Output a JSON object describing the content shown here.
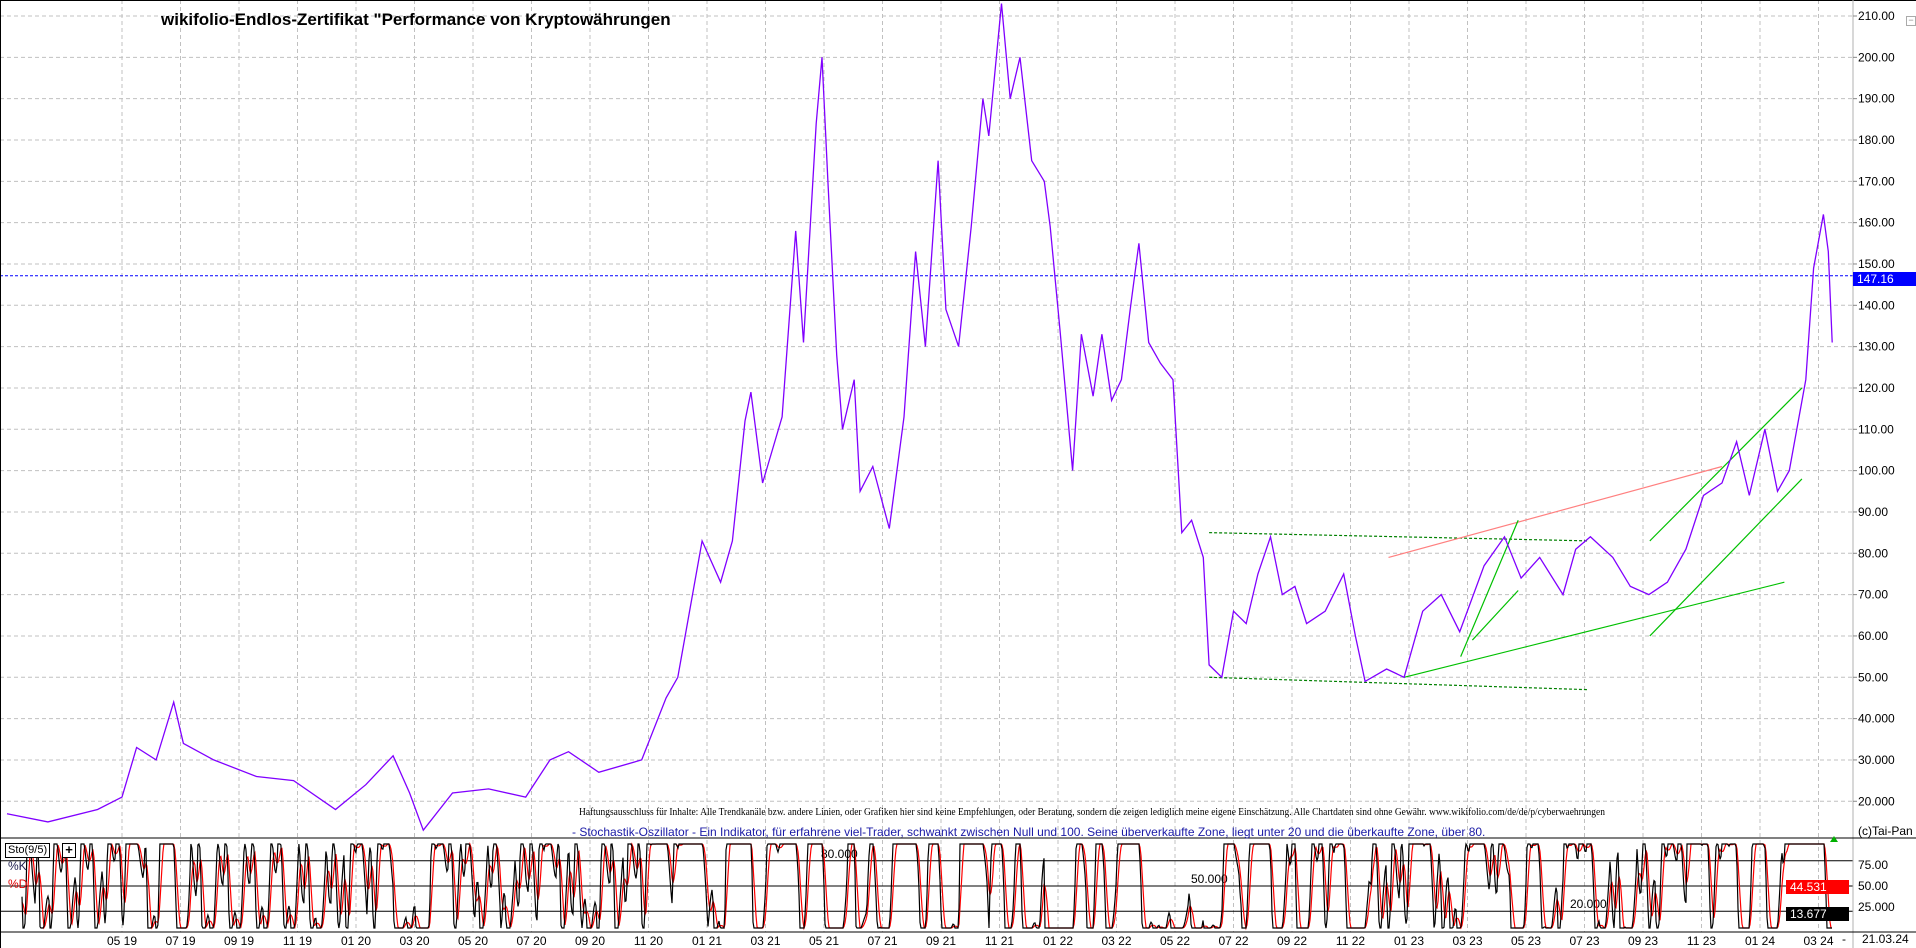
{
  "title": "wikifolio-Endlos-Zertifikat \"Performance von Kryptowährungen",
  "disclaimer": "Haftungsausschluss für Inhalte: Alle Trendkanäle bzw. andere Linien, oder Grafiken hier sind keine Empfehlungen, oder Beratung, sondern die zeigen lediglich meine eigene Einschätzung. Alle Chartdaten sind ohne Gewähr.  www.wikifolio.com/de/de/p/cyberwaehrungen",
  "indicator_description": "- Stochastik-Oszillator - Ein Indikator, für erfahrene viel-Trader, schwankt zwischen Null und 100. Seine überverkaufte Zone, liegt unter 20 und die überkaufte Zone, über 80.",
  "copyright": "(c)Tai-Pan",
  "end_date_label": "21.03.24",
  "end_dash": "-",
  "colors": {
    "price": "#8000ff",
    "last_price": "#0000ff",
    "trend_green": "#00c000",
    "trend_dashed": "#008000",
    "trend_red": "#ff8080",
    "stoch_k": "#000000",
    "stoch_d": "#ff0000",
    "grid": "#c0c0c0"
  },
  "icons": {
    "collapse": "minus-icon",
    "add_indicator": "plus-icon",
    "marker": "green-triangle-icon"
  },
  "chart_data": [
    {
      "type": "line",
      "title": "wikifolio-Endlos-Zertifikat \"Performance von Kryptowährungen",
      "ylim": [
        10,
        215
      ],
      "y_ticks": [
        "210.00",
        "200.00",
        "190.00",
        "180.00",
        "170.00",
        "160.00",
        "150.00",
        "140.00",
        "130.00",
        "120.00",
        "110.00",
        "100.00",
        "90.00",
        "80.00",
        "70.00",
        "60.00",
        "50.00",
        "40.000",
        "30.000",
        "20.000"
      ],
      "y_tick_values": [
        210,
        200,
        190,
        180,
        170,
        160,
        150,
        140,
        130,
        120,
        110,
        100,
        90,
        80,
        70,
        60,
        50,
        40,
        30,
        20
      ],
      "x_ticks": [
        "05 19",
        "07 19",
        "09 19",
        "11 19",
        "01 20",
        "03 20",
        "05 20",
        "07 20",
        "09 20",
        "11 20",
        "01 21",
        "03 21",
        "05 21",
        "07 21",
        "09 21",
        "11 21",
        "01 22",
        "03 22",
        "05 22",
        "07 22",
        "09 22",
        "11 22",
        "01 23",
        "03 23",
        "05 23",
        "07 23",
        "09 23",
        "11 23",
        "01 24",
        "03 24"
      ],
      "grid": true,
      "last_value": 147.16,
      "last_value_label": "147.16",
      "series": [
        {
          "points": [
            [
              "2019-01-03",
              17
            ],
            [
              "2019-02-15",
              15
            ],
            [
              "2019-04-06",
              18
            ],
            [
              "2019-05-01",
              21
            ],
            [
              "2019-05-16",
              33
            ],
            [
              "2019-06-06",
              30
            ],
            [
              "2019-06-24",
              44
            ],
            [
              "2019-07-04",
              34
            ],
            [
              "2019-08-05",
              30
            ],
            [
              "2019-09-19",
              26
            ],
            [
              "2019-10-27",
              25
            ],
            [
              "2019-12-10",
              18
            ],
            [
              "2020-01-11",
              24
            ],
            [
              "2020-02-09",
              31
            ],
            [
              "2020-02-26",
              22
            ],
            [
              "2020-03-10",
              13
            ],
            [
              "2020-04-10",
              22
            ],
            [
              "2020-05-17",
              23
            ],
            [
              "2020-06-25",
              21
            ],
            [
              "2020-07-20",
              30
            ],
            [
              "2020-08-09",
              32
            ],
            [
              "2020-09-10",
              27
            ],
            [
              "2020-10-24",
              30
            ],
            [
              "2020-11-19",
              45
            ],
            [
              "2020-12-01",
              50
            ],
            [
              "2020-12-26",
              83
            ],
            [
              "2021-01-15",
              73
            ],
            [
              "2021-01-27",
              83
            ],
            [
              "2021-02-10",
              112
            ],
            [
              "2021-02-16",
              119
            ],
            [
              "2021-02-28",
              97
            ],
            [
              "2021-03-18",
              113
            ],
            [
              "2021-04-02",
              158
            ],
            [
              "2021-04-10",
              131
            ],
            [
              "2021-04-23",
              184
            ],
            [
              "2021-04-29",
              200
            ],
            [
              "2021-05-05",
              170
            ],
            [
              "2021-05-14",
              128
            ],
            [
              "2021-05-20",
              110
            ],
            [
              "2021-06-02",
              122
            ],
            [
              "2021-06-08",
              95
            ],
            [
              "2021-06-21",
              101
            ],
            [
              "2021-07-08",
              86
            ],
            [
              "2021-07-23",
              113
            ],
            [
              "2021-08-05",
              153
            ],
            [
              "2021-08-15",
              130
            ],
            [
              "2021-08-28",
              175
            ],
            [
              "2021-09-06",
              139
            ],
            [
              "2021-09-19",
              130
            ],
            [
              "2021-10-02",
              159
            ],
            [
              "2021-10-14",
              190
            ],
            [
              "2021-10-20",
              181
            ],
            [
              "2021-11-03",
              213
            ],
            [
              "2021-11-12",
              190
            ],
            [
              "2021-11-22",
              200
            ],
            [
              "2021-12-04",
              175
            ],
            [
              "2021-12-17",
              170
            ],
            [
              "2021-12-23",
              159
            ],
            [
              "2022-01-03",
              134
            ],
            [
              "2022-01-16",
              100
            ],
            [
              "2022-01-25",
              133
            ],
            [
              "2022-02-07",
              118
            ],
            [
              "2022-02-16",
              133
            ],
            [
              "2022-02-26",
              117
            ],
            [
              "2022-03-06",
              122
            ],
            [
              "2022-03-15",
              139
            ],
            [
              "2022-03-24",
              155
            ],
            [
              "2022-04-04",
              131
            ],
            [
              "2022-04-16",
              126
            ],
            [
              "2022-04-29",
              122
            ],
            [
              "2022-05-08",
              85
            ],
            [
              "2022-05-18",
              88
            ],
            [
              "2022-05-30",
              79
            ],
            [
              "2022-06-06",
              53
            ],
            [
              "2022-06-19",
              50
            ],
            [
              "2022-07-01",
              66
            ],
            [
              "2022-07-14",
              63
            ],
            [
              "2022-07-26",
              75
            ],
            [
              "2022-08-09",
              84
            ],
            [
              "2022-08-21",
              70
            ],
            [
              "2022-09-04",
              72
            ],
            [
              "2022-09-16",
              63
            ],
            [
              "2022-10-05",
              66
            ],
            [
              "2022-10-24",
              75
            ],
            [
              "2022-11-06",
              60
            ],
            [
              "2022-11-16",
              49
            ],
            [
              "2022-12-08",
              52
            ],
            [
              "2022-12-26",
              50
            ],
            [
              "2023-01-15",
              66
            ],
            [
              "2023-02-04",
              70
            ],
            [
              "2023-02-23",
              61
            ],
            [
              "2023-03-18",
              77
            ],
            [
              "2023-04-09",
              84
            ],
            [
              "2023-04-26",
              74
            ],
            [
              "2023-05-15",
              79
            ],
            [
              "2023-06-09",
              70
            ],
            [
              "2023-06-22",
              81
            ],
            [
              "2023-07-07",
              84
            ],
            [
              "2023-07-30",
              79
            ],
            [
              "2023-08-18",
              72
            ],
            [
              "2023-09-07",
              70
            ],
            [
              "2023-09-26",
              73
            ],
            [
              "2023-10-15",
              81
            ],
            [
              "2023-11-03",
              94
            ],
            [
              "2023-11-22",
              97
            ],
            [
              "2023-12-07",
              107
            ],
            [
              "2023-12-20",
              94
            ],
            [
              "2024-01-06",
              110
            ],
            [
              "2024-01-19",
              95
            ],
            [
              "2024-02-01",
              100
            ],
            [
              "2024-02-18",
              122
            ],
            [
              "2024-02-26",
              149
            ],
            [
              "2024-03-06",
              162
            ],
            [
              "2024-03-11",
              153
            ],
            [
              "2024-03-15",
              131
            ]
          ]
        }
      ],
      "trendlines": [
        {
          "style": "dashed",
          "color": "#008000",
          "from": [
            "2022-06-06",
            85
          ],
          "to": [
            "2023-07-05",
            83
          ]
        },
        {
          "style": "dashed",
          "color": "#008000",
          "from": [
            "2022-06-06",
            50
          ],
          "to": [
            "2023-07-05",
            47
          ]
        },
        {
          "style": "solid",
          "color": "#ff8080",
          "from": [
            "2022-12-10",
            79
          ],
          "to": [
            "2023-11-22",
            101
          ]
        },
        {
          "style": "solid",
          "color": "#00c000",
          "from": [
            "2022-12-26",
            50
          ],
          "to": [
            "2024-01-26",
            73
          ]
        },
        {
          "style": "solid",
          "color": "#00c000",
          "from": [
            "2023-02-24",
            55
          ],
          "to": [
            "2023-04-23",
            88
          ]
        },
        {
          "style": "solid",
          "color": "#00c000",
          "from": [
            "2023-03-06",
            59
          ],
          "to": [
            "2023-04-23",
            71
          ]
        },
        {
          "style": "solid",
          "color": "#00c000",
          "from": [
            "2023-09-08",
            83
          ],
          "to": [
            "2024-02-14",
            120
          ]
        },
        {
          "style": "solid",
          "color": "#00c000",
          "from": [
            "2023-09-08",
            60
          ],
          "to": [
            "2024-02-14",
            98
          ]
        }
      ]
    },
    {
      "type": "line",
      "name": "Sto(9/5)",
      "series_labels": [
        "%K",
        "%D"
      ],
      "ylim": [
        0,
        100
      ],
      "levels": [
        80,
        50,
        20
      ],
      "level_labels": [
        "80.000",
        "50.000",
        "20.000"
      ],
      "y_ticks": [
        "75.00",
        "50.00",
        "25.000"
      ],
      "last_k": "13.677",
      "last_d": "44.531"
    }
  ]
}
